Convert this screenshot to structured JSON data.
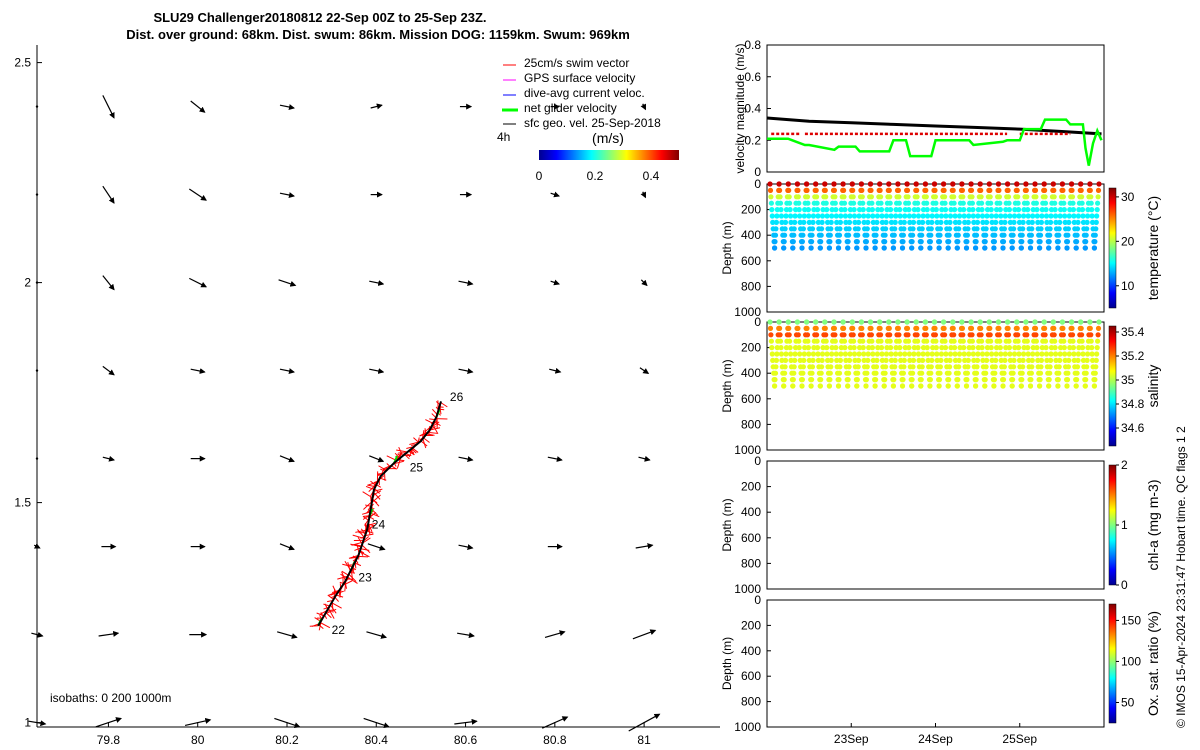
{
  "header": {
    "title_line1": "SLU29 Challenger20180812 22-Sep 00Z to 25-Sep 23Z.",
    "title_line2": "Dist. over ground: 68km. Dist. swum: 86km. Mission DOG: 1159km. Swum: 969km"
  },
  "footer": {
    "credit": "© IMOS 15-Apr-2024 23:31:47 Hobart time. QC flags 1  2"
  },
  "colors": {
    "swim_vector": "#ff0000",
    "gps_velocity": "#ff00ff",
    "dive_avg_current": "#0000ff",
    "net_glider_velocity": "#00ff00",
    "geo_velocity": "#000000",
    "track": "#000000"
  },
  "chart_data": [
    {
      "id": "map",
      "type": "scatter",
      "x_ticks": [
        "79.8",
        "80",
        "80.2",
        "80.4",
        "80.6",
        "80.8",
        "81"
      ],
      "y_ticks": [
        "1",
        "1.5",
        "2",
        "2.5"
      ],
      "xlim": [
        79.64,
        81.17
      ],
      "ylim": [
        0.99,
        2.54
      ],
      "legend": {
        "placement": "top-right",
        "entries": [
          {
            "label": "25cm/s swim vector",
            "color": "#ff0000"
          },
          {
            "label": "GPS surface velocity",
            "color": "#ff00ff"
          },
          {
            "label": "dive-avg current veloc.",
            "color": "#0000ff"
          },
          {
            "label": "net glider velocity",
            "color": "#00ff00"
          },
          {
            "label": "sfc geo. vel. 25-Sep-2018",
            "color": "#000000"
          }
        ],
        "time_label": "4h"
      },
      "colorbar": {
        "label": "(m/s)",
        "ticks": [
          "0",
          "0.2",
          "0.4"
        ],
        "range": [
          0,
          0.5
        ]
      },
      "isobaths_label": "isobaths: 0   200  1000m",
      "track": {
        "lon": [
          80.27,
          80.29,
          80.31,
          80.33,
          80.345,
          80.36,
          80.37,
          80.38,
          80.385,
          80.39,
          80.395,
          80.41,
          80.44,
          80.47,
          80.5,
          80.52,
          80.535,
          80.545
        ],
        "lat": [
          1.22,
          1.255,
          1.29,
          1.32,
          1.35,
          1.38,
          1.41,
          1.44,
          1.47,
          1.5,
          1.53,
          1.56,
          1.59,
          1.615,
          1.64,
          1.665,
          1.695,
          1.73
        ]
      },
      "day_labels": [
        {
          "label": "22",
          "lon": 80.3,
          "lat": 1.21
        },
        {
          "label": "23",
          "lon": 80.36,
          "lat": 1.33
        },
        {
          "label": "24",
          "lon": 80.39,
          "lat": 1.45
        },
        {
          "label": "25",
          "lon": 80.475,
          "lat": 1.58
        },
        {
          "label": "26",
          "lon": 80.565,
          "lat": 1.74
        }
      ],
      "geo_vectors": {
        "grid_lon": [
          79.64,
          79.8,
          80.0,
          80.2,
          80.4,
          80.6,
          80.8,
          81.0
        ],
        "grid_lat": [
          1.0,
          1.2,
          1.4,
          1.6,
          1.8,
          2.0,
          2.2,
          2.4
        ],
        "u_v_rows": [
          [
            [
              0.06,
              -0.01
            ],
            [
              0.09,
              0.03
            ],
            [
              0.09,
              0.02
            ],
            [
              0.09,
              -0.03
            ],
            [
              0.09,
              -0.03
            ],
            [
              0.08,
              0.01
            ],
            [
              0.09,
              0.04
            ],
            [
              0.11,
              0.06
            ]
          ],
          [
            [
              0.04,
              -0.01
            ],
            [
              0.07,
              0.01
            ],
            [
              0.06,
              0.0
            ],
            [
              0.07,
              -0.02
            ],
            [
              0.07,
              -0.02
            ],
            [
              0.06,
              -0.01
            ],
            [
              0.07,
              0.02
            ],
            [
              0.08,
              0.03
            ]
          ],
          [
            [
              0.02,
              -0.01
            ],
            [
              0.05,
              0.0
            ],
            [
              0.05,
              0.0
            ],
            [
              0.05,
              -0.02
            ],
            [
              0.06,
              -0.02
            ],
            [
              0.05,
              -0.01
            ],
            [
              0.05,
              0.0
            ],
            [
              0.06,
              0.01
            ]
          ],
          [
            [
              0.0,
              0.0
            ],
            [
              0.04,
              -0.01
            ],
            [
              0.05,
              0.0
            ],
            [
              0.05,
              -0.02
            ],
            [
              0.05,
              -0.02
            ],
            [
              0.05,
              -0.01
            ],
            [
              0.05,
              -0.01
            ],
            [
              0.04,
              -0.01
            ]
          ],
          [
            [
              0.0,
              0.0
            ],
            [
              0.04,
              -0.03
            ],
            [
              0.05,
              -0.01
            ],
            [
              0.05,
              -0.01
            ],
            [
              0.05,
              -0.01
            ],
            [
              0.05,
              -0.01
            ],
            [
              0.04,
              -0.01
            ],
            [
              0.03,
              -0.02
            ]
          ],
          [
            [
              0.0,
              0.0
            ],
            [
              0.04,
              -0.05
            ],
            [
              0.06,
              -0.03
            ],
            [
              0.06,
              -0.02
            ],
            [
              0.05,
              -0.01
            ],
            [
              0.05,
              -0.01
            ],
            [
              0.03,
              -0.01
            ],
            [
              0.02,
              -0.02
            ]
          ],
          [
            [
              0.0,
              0.0
            ],
            [
              0.04,
              -0.06
            ],
            [
              0.06,
              -0.04
            ],
            [
              0.05,
              -0.01
            ],
            [
              0.04,
              0.0
            ],
            [
              0.04,
              0.0
            ],
            [
              0.03,
              -0.01
            ],
            [
              0.01,
              -0.02
            ]
          ],
          [
            [
              0.0,
              0.0
            ],
            [
              0.04,
              -0.08
            ],
            [
              0.05,
              -0.04
            ],
            [
              0.05,
              -0.01
            ],
            [
              0.04,
              0.01
            ],
            [
              0.04,
              0.0
            ],
            [
              0.03,
              0.0
            ],
            [
              0.01,
              -0.02
            ]
          ]
        ]
      }
    },
    {
      "id": "velocity",
      "type": "line",
      "ylabel": "velocity magnitude (m/s)",
      "y_ticks": [
        "0",
        "0.2",
        "0.4",
        "0.6",
        "0.8"
      ],
      "ylim": [
        0,
        0.8
      ],
      "xlim": [
        0,
        4
      ],
      "series": [
        {
          "color": "#000000",
          "x": [
            0,
            0.5,
            1,
            1.5,
            2,
            2.5,
            3,
            3.5,
            3.97
          ],
          "y": [
            0.34,
            0.32,
            0.31,
            0.3,
            0.29,
            0.28,
            0.27,
            0.255,
            0.24
          ]
        },
        {
          "color": "#ff0000",
          "x": [
            0.05,
            0.4,
            0.45,
            2.85,
            3.0,
            3.6
          ],
          "y": [
            0.24,
            0.24,
            0.24,
            0.24,
            0.24,
            0.24
          ]
        },
        {
          "color": "#00ff00",
          "x": [
            0,
            0.25,
            0.3,
            0.45,
            0.5,
            0.8,
            0.85,
            1.05,
            1.1,
            1.45,
            1.5,
            1.65,
            1.7,
            1.95,
            2.0,
            2.4,
            2.45,
            2.8,
            2.85,
            3.0,
            3.05,
            3.25,
            3.3,
            3.55,
            3.6,
            3.75,
            3.78,
            3.82,
            3.87,
            3.92,
            3.97
          ],
          "y": [
            0.21,
            0.21,
            0.2,
            0.17,
            0.17,
            0.14,
            0.16,
            0.16,
            0.13,
            0.13,
            0.2,
            0.2,
            0.1,
            0.1,
            0.2,
            0.2,
            0.17,
            0.19,
            0.2,
            0.2,
            0.27,
            0.27,
            0.33,
            0.33,
            0.3,
            0.3,
            0.15,
            0.04,
            0.18,
            0.26,
            0.2
          ]
        }
      ]
    },
    {
      "id": "temperature",
      "type": "scatter",
      "ylabel": "Depth (m)",
      "y_ticks": [
        "0",
        "200",
        "400",
        "600",
        "800",
        "1000"
      ],
      "ylim": [
        0,
        1000
      ],
      "cbar_label": "temperature (°C)",
      "cbar_ticks": [
        "10",
        "20",
        "30"
      ],
      "cbar_range": [
        5,
        32
      ],
      "palette": "jet",
      "profiles": 36,
      "profile_depth_max": 500,
      "surface_value": 30,
      "deep_value": 14
    },
    {
      "id": "salinity",
      "type": "scatter",
      "ylabel": "Depth (m)",
      "y_ticks": [
        "0",
        "200",
        "400",
        "600",
        "800",
        "1000"
      ],
      "ylim": [
        0,
        1000
      ],
      "cbar_label": "salinity",
      "cbar_ticks": [
        "34.6",
        "34.8",
        "35",
        "35.2",
        "35.4"
      ],
      "cbar_range": [
        34.45,
        35.45
      ],
      "palette": "jet",
      "profiles": 36,
      "profile_depth_max": 500
    },
    {
      "id": "chla",
      "type": "scatter",
      "ylabel": "Depth (m)",
      "y_ticks": [
        "0",
        "200",
        "400",
        "600",
        "800",
        "1000"
      ],
      "ylim": [
        0,
        1000
      ],
      "cbar_label": "chl-a (mg m-3)",
      "cbar_ticks": [
        "0",
        "1",
        "2"
      ],
      "cbar_range": [
        0,
        2
      ],
      "palette": "jet"
    },
    {
      "id": "oxygen",
      "type": "scatter",
      "ylabel": "Depth (m)",
      "y_ticks": [
        "0",
        "200",
        "400",
        "600",
        "800",
        "1000"
      ],
      "ylim": [
        0,
        1000
      ],
      "cbar_label": "Ox. sat. ratio (%)",
      "cbar_ticks": [
        "50",
        "100",
        "150"
      ],
      "cbar_range": [
        25,
        170
      ],
      "palette": "jet",
      "x_ticks": [
        "23Sep",
        "24Sep",
        "25Sep"
      ],
      "x_tick_pos": [
        1,
        2,
        3
      ]
    }
  ]
}
